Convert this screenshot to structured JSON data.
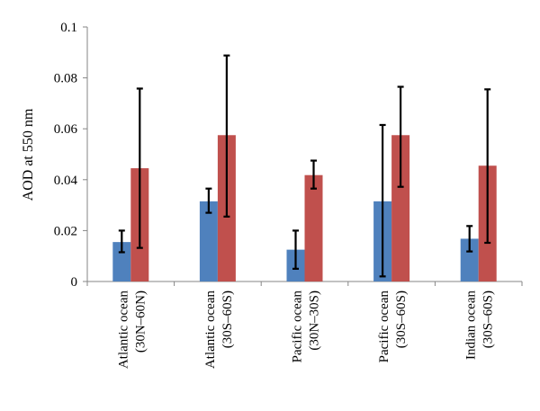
{
  "chart_data": {
    "type": "bar",
    "title": "",
    "xlabel": "",
    "ylabel": "AOD at 550 nm",
    "ylim": [
      0,
      0.1
    ],
    "yticks": [
      "0",
      "0.02",
      "0.04",
      "0.06",
      "0.08",
      "0.1"
    ],
    "yticks_values": [
      0,
      0.02,
      0.04,
      0.06,
      0.08,
      0.1
    ],
    "grid": false,
    "legend": "none",
    "categories": [
      [
        "Atlantic ocean",
        "(30N–60N)"
      ],
      [
        "Atlantic ocean",
        "(30S–60S)"
      ],
      [
        "Pacific ocean",
        "(30N–30S)"
      ],
      [
        "Pacific ocean",
        "(30S–60S)"
      ],
      [
        "Indian ocean",
        "(30S–60S)"
      ]
    ],
    "series": [
      {
        "color": "#4f81bd",
        "values": [
          0.0155,
          0.0315,
          0.0125,
          0.0315,
          0.0168
        ],
        "err_low": [
          0.0115,
          0.027,
          0.005,
          0.002,
          0.0118
        ],
        "err_high": [
          0.02,
          0.0365,
          0.02,
          0.0615,
          0.0218
        ]
      },
      {
        "color": "#c0504d",
        "values": [
          0.0445,
          0.0575,
          0.0418,
          0.0575,
          0.0455
        ],
        "err_low": [
          0.0132,
          0.0255,
          0.0365,
          0.0372,
          0.0152
        ],
        "err_high": [
          0.0758,
          0.0888,
          0.0475,
          0.0765,
          0.0755
        ]
      }
    ]
  }
}
